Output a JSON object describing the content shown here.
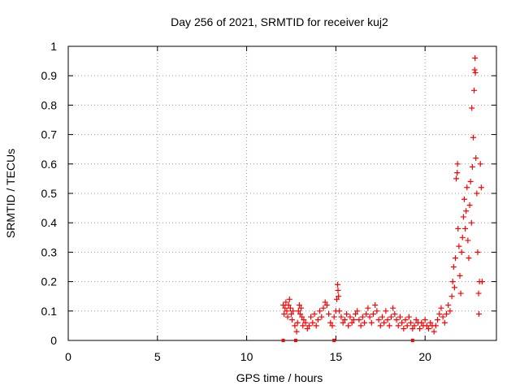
{
  "chart_data": {
    "type": "scatter",
    "title": "Day 256 of 2021, SRMTID for receiver kuj2",
    "xlabel": "GPS time / hours",
    "ylabel": "SRMTID / TECUs",
    "xlim": [
      0,
      24
    ],
    "ylim": [
      0,
      1
    ],
    "grid": true,
    "marker": "+",
    "x_ticks": [
      0,
      5,
      10,
      15,
      20
    ],
    "y_ticks": [
      0,
      0.1,
      0.2,
      0.3,
      0.4,
      0.5,
      0.6,
      0.7,
      0.8,
      0.9,
      1
    ],
    "y_tick_labels": [
      "0",
      "0.1",
      "0.2",
      "0.3",
      "0.4",
      "0.5",
      "0.6",
      "0.7",
      "0.8",
      "0.9",
      "1"
    ],
    "series": [
      {
        "name": "SRMTID",
        "color": "#ff0000",
        "points": [
          [
            12.05,
            0.12
          ],
          [
            12.1,
            0.09
          ],
          [
            12.15,
            0.11
          ],
          [
            12.2,
            0.13
          ],
          [
            12.25,
            0.1
          ],
          [
            12.3,
            0.08
          ],
          [
            12.35,
            0.12
          ],
          [
            12.4,
            0.14
          ],
          [
            12.45,
            0.11
          ],
          [
            12.5,
            0.09
          ],
          [
            12.55,
            0.07
          ],
          [
            12.6,
            0.1
          ],
          [
            12.7,
            0.05
          ],
          [
            12.8,
            0.03
          ],
          [
            12.85,
            0.06
          ],
          [
            12.9,
            0.1
          ],
          [
            12.95,
            0.12
          ],
          [
            13.0,
            0.09
          ],
          [
            13.05,
            0.11
          ],
          [
            13.1,
            0.08
          ],
          [
            13.15,
            0.05
          ],
          [
            13.2,
            0.07
          ],
          [
            13.3,
            0.06
          ],
          [
            13.4,
            0.04
          ],
          [
            13.5,
            0.05
          ],
          [
            13.6,
            0.08
          ],
          [
            13.7,
            0.06
          ],
          [
            13.8,
            0.09
          ],
          [
            13.9,
            0.05
          ],
          [
            14.0,
            0.07
          ],
          [
            14.1,
            0.1
          ],
          [
            14.2,
            0.08
          ],
          [
            14.3,
            0.11
          ],
          [
            14.4,
            0.13
          ],
          [
            14.5,
            0.12
          ],
          [
            14.6,
            0.09
          ],
          [
            14.7,
            0.06
          ],
          [
            14.8,
            0.05
          ],
          [
            14.9,
            0.08
          ],
          [
            15.0,
            0.1
          ],
          [
            15.05,
            0.14
          ],
          [
            15.1,
            0.19
          ],
          [
            15.12,
            0.17
          ],
          [
            15.15,
            0.15
          ],
          [
            15.2,
            0.1
          ],
          [
            15.3,
            0.08
          ],
          [
            15.4,
            0.06
          ],
          [
            15.5,
            0.07
          ],
          [
            15.6,
            0.09
          ],
          [
            15.7,
            0.05
          ],
          [
            15.8,
            0.08
          ],
          [
            15.9,
            0.06
          ],
          [
            16.0,
            0.07
          ],
          [
            16.1,
            0.09
          ],
          [
            16.2,
            0.1
          ],
          [
            16.3,
            0.07
          ],
          [
            16.4,
            0.05
          ],
          [
            16.5,
            0.08
          ],
          [
            16.6,
            0.06
          ],
          [
            16.7,
            0.09
          ],
          [
            16.8,
            0.11
          ],
          [
            16.9,
            0.08
          ],
          [
            17.0,
            0.06
          ],
          [
            17.1,
            0.09
          ],
          [
            17.2,
            0.12
          ],
          [
            17.3,
            0.1
          ],
          [
            17.4,
            0.07
          ],
          [
            17.5,
            0.05
          ],
          [
            17.6,
            0.08
          ],
          [
            17.7,
            0.06
          ],
          [
            17.8,
            0.1
          ],
          [
            17.9,
            0.07
          ],
          [
            18.0,
            0.05
          ],
          [
            18.1,
            0.08
          ],
          [
            18.2,
            0.11
          ],
          [
            18.3,
            0.09
          ],
          [
            18.4,
            0.07
          ],
          [
            18.5,
            0.05
          ],
          [
            18.6,
            0.08
          ],
          [
            18.7,
            0.06
          ],
          [
            18.8,
            0.04
          ],
          [
            18.9,
            0.07
          ],
          [
            19.0,
            0.05
          ],
          [
            19.1,
            0.08
          ],
          [
            19.2,
            0.06
          ],
          [
            19.3,
            0.04
          ],
          [
            19.4,
            0.05
          ],
          [
            19.5,
            0.07
          ],
          [
            19.6,
            0.06
          ],
          [
            19.7,
            0.04
          ],
          [
            19.8,
            0.06
          ],
          [
            19.9,
            0.05
          ],
          [
            20.0,
            0.07
          ],
          [
            20.1,
            0.05
          ],
          [
            20.2,
            0.04
          ],
          [
            20.3,
            0.06
          ],
          [
            20.4,
            0.05
          ],
          [
            20.5,
            0.03
          ],
          [
            20.6,
            0.05
          ],
          [
            20.7,
            0.07
          ],
          [
            20.8,
            0.09
          ],
          [
            20.9,
            0.11
          ],
          [
            21.0,
            0.08
          ],
          [
            21.1,
            0.06
          ],
          [
            21.2,
            0.09
          ],
          [
            21.3,
            0.12
          ],
          [
            21.4,
            0.1
          ],
          [
            21.5,
            0.15
          ],
          [
            21.55,
            0.2
          ],
          [
            21.6,
            0.25
          ],
          [
            21.65,
            0.18
          ],
          [
            21.7,
            0.28
          ],
          [
            21.75,
            0.55
          ],
          [
            21.8,
            0.57
          ],
          [
            21.82,
            0.6
          ],
          [
            21.85,
            0.38
          ],
          [
            21.9,
            0.32
          ],
          [
            21.95,
            0.22
          ],
          [
            22.0,
            0.16
          ],
          [
            22.05,
            0.3
          ],
          [
            22.1,
            0.35
          ],
          [
            22.15,
            0.42
          ],
          [
            22.2,
            0.48
          ],
          [
            22.25,
            0.38
          ],
          [
            22.3,
            0.44
          ],
          [
            22.35,
            0.52
          ],
          [
            22.4,
            0.34
          ],
          [
            22.45,
            0.28
          ],
          [
            22.5,
            0.46
          ],
          [
            22.55,
            0.54
          ],
          [
            22.6,
            0.4
          ],
          [
            22.62,
            0.79
          ],
          [
            22.65,
            0.59
          ],
          [
            22.7,
            0.69
          ],
          [
            22.75,
            0.85
          ],
          [
            22.78,
            0.92
          ],
          [
            22.8,
            0.96
          ],
          [
            22.82,
            0.91
          ],
          [
            22.85,
            0.62
          ],
          [
            22.9,
            0.5
          ],
          [
            22.95,
            0.3
          ],
          [
            23.0,
            0.16
          ],
          [
            23.02,
            0.09
          ],
          [
            23.05,
            0.2
          ],
          [
            23.1,
            0.6
          ],
          [
            23.15,
            0.52
          ],
          [
            23.2,
            0.2
          ]
        ]
      }
    ],
    "markers_on_axis": [
      12.05,
      12.75,
      14.9,
      19.3
    ]
  }
}
